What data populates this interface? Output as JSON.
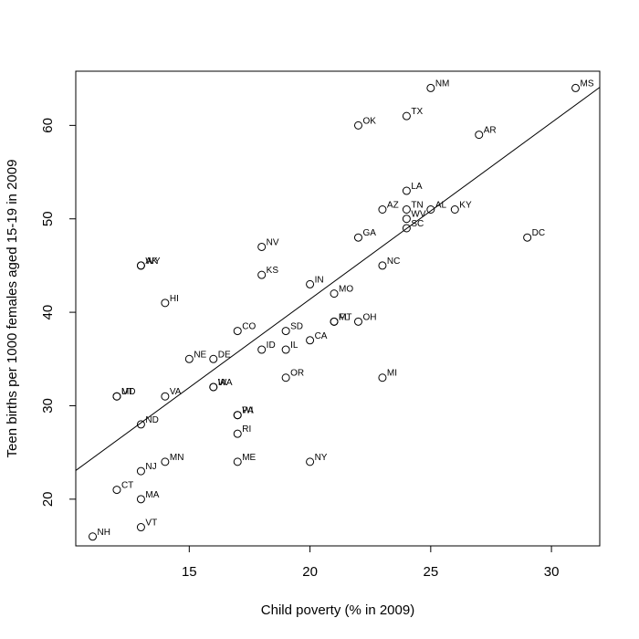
{
  "chart_data": {
    "type": "scatter",
    "xlabel": "Child poverty (% in 2009)",
    "ylabel": "Teen births per 1000 females aged 15-19 in 2009",
    "xlim": [
      10.3,
      32.0
    ],
    "ylim": [
      15.0,
      65.8
    ],
    "xticks": [
      15,
      20,
      25,
      30
    ],
    "yticks": [
      20,
      30,
      40,
      50,
      60
    ],
    "grid": false,
    "legend": "none",
    "regression_line": {
      "intercept": 3.6,
      "slope": 1.89
    },
    "points": [
      {
        "label": "MS",
        "x": 31,
        "y": 64
      },
      {
        "label": "NM",
        "x": 25,
        "y": 64
      },
      {
        "label": "TX",
        "x": 24,
        "y": 61
      },
      {
        "label": "OK",
        "x": 22,
        "y": 60
      },
      {
        "label": "AR",
        "x": 27,
        "y": 59
      },
      {
        "label": "LA",
        "x": 24,
        "y": 53
      },
      {
        "label": "TN",
        "x": 24,
        "y": 51
      },
      {
        "label": "AZ",
        "x": 23,
        "y": 51
      },
      {
        "label": "AL",
        "x": 25,
        "y": 51
      },
      {
        "label": "KY",
        "x": 26,
        "y": 51
      },
      {
        "label": "WV",
        "x": 24,
        "y": 50
      },
      {
        "label": "SC",
        "x": 24,
        "y": 49
      },
      {
        "label": "DC",
        "x": 29,
        "y": 48
      },
      {
        "label": "GA",
        "x": 22,
        "y": 48
      },
      {
        "label": "NV",
        "x": 18,
        "y": 47
      },
      {
        "label": "NC",
        "x": 23,
        "y": 45
      },
      {
        "label": "AK",
        "x": 13,
        "y": 45
      },
      {
        "label": "WY",
        "x": 13,
        "y": 45
      },
      {
        "label": "KS",
        "x": 18,
        "y": 44
      },
      {
        "label": "IN",
        "x": 20,
        "y": 43
      },
      {
        "label": "MO",
        "x": 21,
        "y": 42
      },
      {
        "label": "HI",
        "x": 14,
        "y": 41
      },
      {
        "label": "FL",
        "x": 21,
        "y": 39
      },
      {
        "label": "MT",
        "x": 21,
        "y": 39
      },
      {
        "label": "OH",
        "x": 22,
        "y": 39
      },
      {
        "label": "CO",
        "x": 17,
        "y": 38
      },
      {
        "label": "SD",
        "x": 19,
        "y": 38
      },
      {
        "label": "CA",
        "x": 20,
        "y": 37
      },
      {
        "label": "ID",
        "x": 18,
        "y": 36
      },
      {
        "label": "IL",
        "x": 19,
        "y": 36
      },
      {
        "label": "NE",
        "x": 15,
        "y": 35
      },
      {
        "label": "DE",
        "x": 16,
        "y": 35
      },
      {
        "label": "OR",
        "x": 19,
        "y": 33
      },
      {
        "label": "MI",
        "x": 23,
        "y": 33
      },
      {
        "label": "IA",
        "x": 16,
        "y": 32
      },
      {
        "label": "WA",
        "x": 16,
        "y": 32
      },
      {
        "label": "MD",
        "x": 12,
        "y": 31
      },
      {
        "label": "UT",
        "x": 12,
        "y": 31
      },
      {
        "label": "VA",
        "x": 14,
        "y": 31
      },
      {
        "label": "PA",
        "x": 17,
        "y": 29
      },
      {
        "label": "WI",
        "x": 17,
        "y": 29
      },
      {
        "label": "ND",
        "x": 13,
        "y": 28
      },
      {
        "label": "RI",
        "x": 17,
        "y": 27
      },
      {
        "label": "MN",
        "x": 14,
        "y": 24
      },
      {
        "label": "ME",
        "x": 17,
        "y": 24
      },
      {
        "label": "NY",
        "x": 20,
        "y": 24
      },
      {
        "label": "NJ",
        "x": 13,
        "y": 23
      },
      {
        "label": "CT",
        "x": 12,
        "y": 21
      },
      {
        "label": "MA",
        "x": 13,
        "y": 20
      },
      {
        "label": "VT",
        "x": 13,
        "y": 17
      },
      {
        "label": "NH",
        "x": 11,
        "y": 16
      }
    ]
  }
}
